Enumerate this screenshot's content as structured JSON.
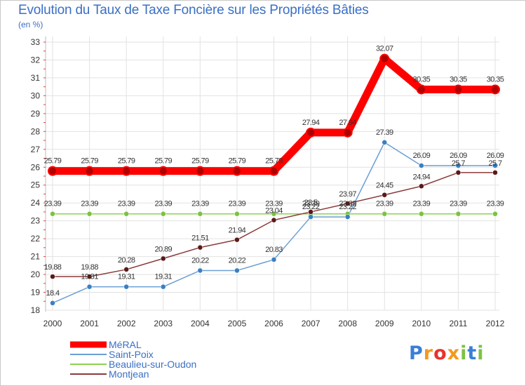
{
  "chart_data": {
    "type": "line",
    "title": "Evolution du Taux de Taxe Foncière sur les Propriétés Bâties",
    "subtitle": "(en %)",
    "categories": [
      "2000",
      "2001",
      "2002",
      "2003",
      "2004",
      "2005",
      "2006",
      "2007",
      "2008",
      "2009",
      "2010",
      "2011",
      "2012"
    ],
    "ylim": [
      18,
      33
    ],
    "yticks": [
      18,
      19,
      20,
      21,
      22,
      23,
      24,
      25,
      26,
      27,
      28,
      29,
      30,
      31,
      32,
      33
    ],
    "series": [
      {
        "name": "MéRAL",
        "color": "#ff0000",
        "values": [
          25.79,
          25.79,
          25.79,
          25.79,
          25.79,
          25.79,
          25.79,
          27.94,
          27.94,
          32.07,
          30.35,
          30.35,
          30.35
        ],
        "labels": [
          "25.79",
          "25.79",
          "25.79",
          "25.79",
          "25.79",
          "25.79",
          "25.79",
          "27.94",
          "27.94",
          "32.07",
          "30.35",
          "30.35",
          "30.35"
        ]
      },
      {
        "name": "Saint-Poix",
        "color": "#6a9fd4",
        "values": [
          18.4,
          19.31,
          19.31,
          19.31,
          20.22,
          20.22,
          20.83,
          23.22,
          23.22,
          27.39,
          26.09,
          26.09,
          26.09
        ],
        "labels": [
          "18.4",
          "19.31",
          "19.31",
          "19.31",
          "20.22",
          "20.22",
          "20.83",
          "23.22",
          "23.22",
          "27.39",
          "26.09",
          "26.09",
          "26.09"
        ]
      },
      {
        "name": "Beaulieu-sur-Oudon",
        "color": "#8fd14f",
        "values": [
          23.39,
          23.39,
          23.39,
          23.39,
          23.39,
          23.39,
          23.39,
          23.39,
          23.39,
          23.39,
          23.39,
          23.39,
          23.39
        ],
        "labels": [
          "23.39",
          "23.39",
          "23.39",
          "23.39",
          "23.39",
          "23.39",
          "23.39",
          "23.39",
          "23.39",
          "23.39",
          "23.39",
          "23.39",
          "23.39"
        ]
      },
      {
        "name": "Montjean",
        "color": "#8b3a3a",
        "values": [
          19.88,
          19.88,
          20.28,
          20.89,
          21.51,
          21.94,
          23.04,
          23.5,
          23.97,
          24.45,
          24.94,
          25.7,
          25.7
        ],
        "labels": [
          "19.88",
          "19.88",
          "20.28",
          "20.89",
          "21.51",
          "21.94",
          "23.04",
          "23.5",
          "23.97",
          "24.45",
          "24.94",
          "25.7",
          "25.7"
        ]
      }
    ],
    "legend_position": "bottom-left"
  },
  "logo": {
    "letters": [
      "P",
      "r",
      "o",
      "x",
      "i",
      "t",
      "i"
    ],
    "colors": [
      "#3a7fd6",
      "#f29a1f",
      "#e8322b",
      "#f29a1f",
      "#7cc242",
      "#3a7fd6",
      "#7cc242"
    ]
  }
}
